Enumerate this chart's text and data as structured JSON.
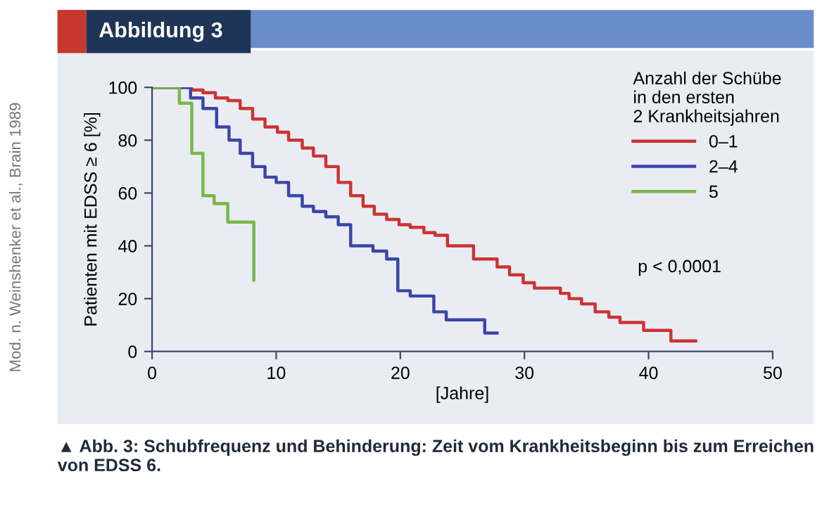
{
  "chart_data": {
    "type": "step",
    "title": "Abbildung 3",
    "xlabel": "[Jahre]",
    "ylabel": "Patienten mit EDSS ≥ 6 [%]",
    "legend_title": "Anzahl der Schübe\nin den ersten\n2 Krankheitsjahren",
    "series": [
      {
        "name": "0–1",
        "color": "#cc3333",
        "x": [
          0,
          3.2,
          4.1,
          5.1,
          6.1,
          7.1,
          8.1,
          9.1,
          10.1,
          11,
          12.1,
          13,
          14,
          15,
          16,
          17,
          17.9,
          18.9,
          19.9,
          20.8,
          21.9,
          22.8,
          23.8,
          25.9,
          27.8,
          28.8,
          29.9,
          30.8,
          32.9,
          33.6,
          34.6,
          35.7,
          36.8,
          37.7,
          39.6,
          41.8,
          43.8
        ],
        "values": [
          100,
          99,
          98,
          96,
          95,
          92,
          88,
          85,
          83,
          80,
          77,
          74,
          70,
          64,
          59,
          55,
          52,
          50,
          48,
          47,
          45,
          44,
          40,
          35,
          32,
          29,
          26,
          24,
          22,
          20,
          18,
          15,
          13,
          11,
          8,
          4,
          4
        ]
      },
      {
        "name": "2–4",
        "color": "#3a45a8",
        "x": [
          0,
          3.1,
          4.1,
          5.2,
          6.2,
          7.1,
          8.1,
          9.1,
          10,
          11,
          12.1,
          13,
          14,
          15,
          16,
          17.8,
          18.9,
          19.8,
          20.8,
          22.7,
          23.7,
          26.8,
          27.8
        ],
        "values": [
          100,
          96,
          92,
          85,
          80,
          75,
          70,
          66,
          64,
          59,
          55,
          53,
          51,
          48,
          40,
          38,
          35,
          23,
          21,
          15,
          12,
          7,
          7
        ]
      },
      {
        "name": "5",
        "color": "#7ab648",
        "x": [
          0,
          2.2,
          3.2,
          4.1,
          5,
          6.1,
          8.2,
          8.2
        ],
        "values": [
          100,
          94,
          75,
          59,
          56,
          49,
          27,
          27
        ]
      }
    ],
    "xlim": [
      0,
      50
    ],
    "xticks": [
      0,
      10,
      20,
      30,
      40,
      50
    ],
    "ylim": [
      0,
      100
    ],
    "yticks": [
      0,
      20,
      40,
      60,
      80,
      100
    ],
    "grid": false,
    "legend": "top right",
    "line_style": "solid",
    "marker": "none",
    "annotations": [
      "p < 0,0001",
      "Mod. n. Weinshenker et al., Brain 1989",
      "▲ Abb. 3: Schubfrequenz und Behinderung: Zeit vom Krankheitsbeginn bis zum Erreichen von EDSS 6."
    ]
  }
}
